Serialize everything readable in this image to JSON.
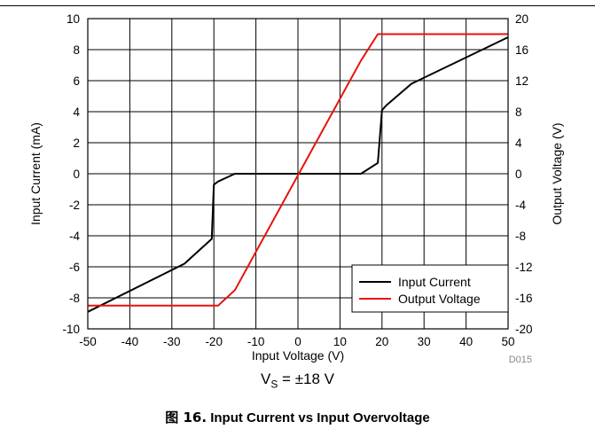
{
  "chart_data": {
    "type": "line",
    "xlabel": "Input Voltage (V)",
    "ylabel_left": "Input Current (mA)",
    "ylabel_right": "Output Voltage (V)",
    "xlim": [
      -50,
      50
    ],
    "ylim_left": [
      -10,
      10
    ],
    "ylim_right": [
      -20,
      20
    ],
    "x_ticks": [
      "-50",
      "-40",
      "-30",
      "-20",
      "-10",
      "0",
      "10",
      "20",
      "30",
      "40",
      "50"
    ],
    "y_left_ticks": [
      "-10",
      "-8",
      "-6",
      "-4",
      "-2",
      "0",
      "2",
      "4",
      "6",
      "8",
      "10"
    ],
    "y_right_ticks": [
      "-20",
      "-16",
      "-12",
      "-8",
      "-4",
      "0",
      "4",
      "8",
      "12",
      "16",
      "20"
    ],
    "grid": true,
    "legend_position": "bottom-right",
    "series": [
      {
        "name": "Input Current",
        "axis": "left",
        "color": "#000000",
        "points": [
          [
            -50,
            -8.9
          ],
          [
            -27,
            -5.8
          ],
          [
            -20.5,
            -4.2
          ],
          [
            -20,
            -0.7
          ],
          [
            -19,
            -0.5
          ],
          [
            -15,
            0
          ],
          [
            15,
            0
          ],
          [
            19,
            0.7
          ],
          [
            20,
            4.1
          ],
          [
            21,
            4.4
          ],
          [
            27,
            5.8
          ],
          [
            50,
            8.8
          ]
        ]
      },
      {
        "name": "Output Voltage",
        "axis": "right",
        "color": "#e8120c",
        "points": [
          [
            -50,
            -17
          ],
          [
            -19,
            -17
          ],
          [
            -15,
            -15
          ],
          [
            15,
            14.6
          ],
          [
            19,
            18
          ],
          [
            50,
            18
          ]
        ]
      }
    ],
    "mark_id": "D015"
  },
  "annotation": {
    "vs_symbol": "V",
    "vs_subscript": "S",
    "vs_value": " = ±18 V"
  },
  "caption": {
    "prefix": "图 16.",
    "text": " Input Current vs Input Overvoltage"
  }
}
